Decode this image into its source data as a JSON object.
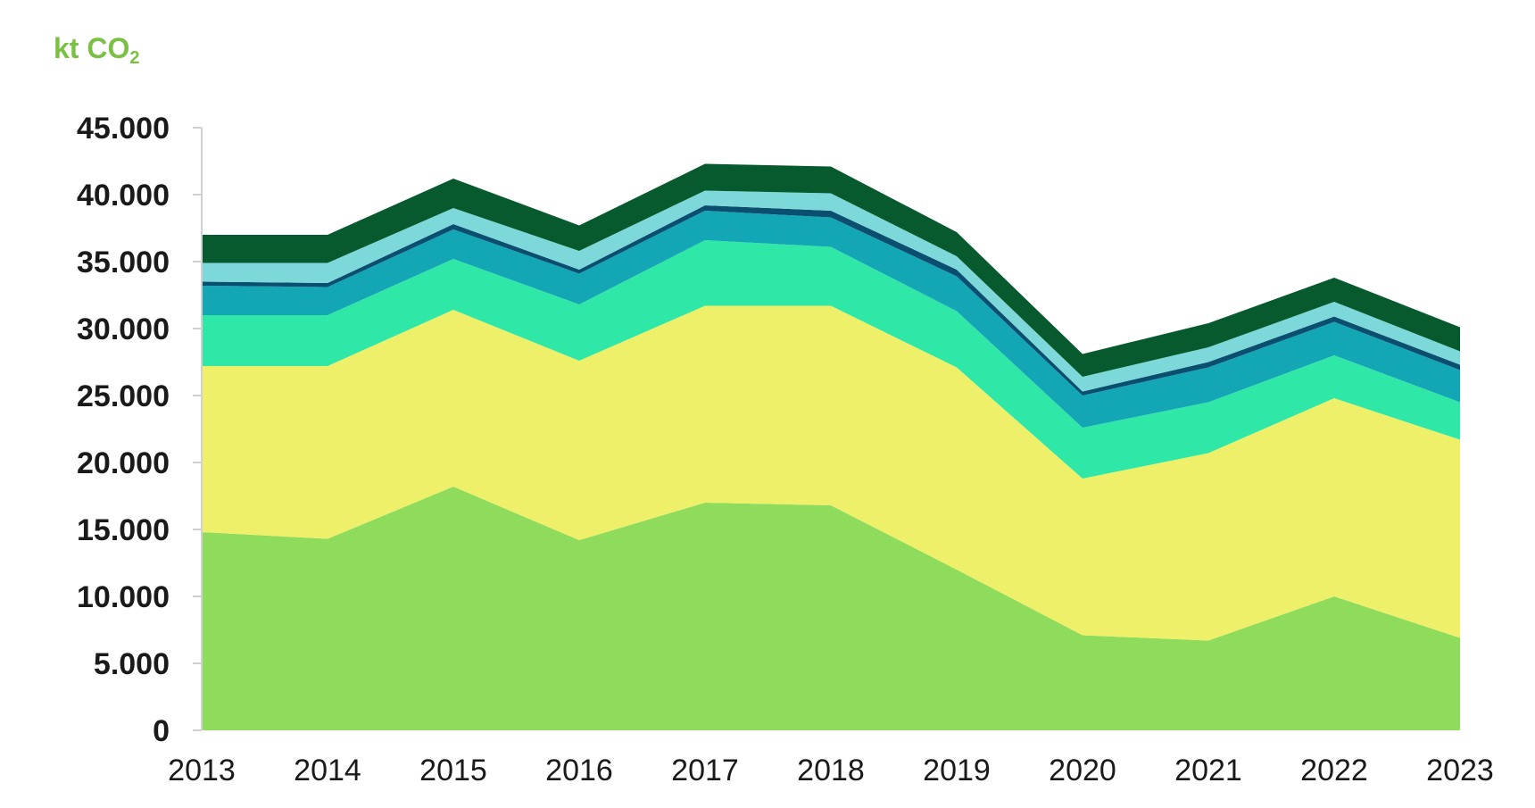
{
  "chart_data": {
    "type": "area",
    "stacked": true,
    "unit_label": {
      "main": "kt CO",
      "subscript": "2"
    },
    "x": [
      "2013",
      "2014",
      "2015",
      "2016",
      "2017",
      "2018",
      "2019",
      "2020",
      "2021",
      "2022",
      "2023"
    ],
    "ylim": [
      0,
      45000
    ],
    "yticks": [
      0,
      5000,
      10000,
      15000,
      20000,
      25000,
      30000,
      35000,
      40000,
      45000
    ],
    "ytick_labels": [
      "0",
      "5.000",
      "10.000",
      "15.000",
      "20.000",
      "25.000",
      "30.000",
      "35.000",
      "40.000",
      "45.000"
    ],
    "grid": false,
    "legend": "none",
    "series": [
      {
        "color": "#8fdc5d",
        "values": [
          14800,
          14300,
          18200,
          14200,
          17000,
          16800,
          12000,
          7100,
          6700,
          10000,
          6900
        ]
      },
      {
        "color": "#eef06a",
        "values": [
          12400,
          12900,
          13200,
          13400,
          14700,
          14900,
          15100,
          11700,
          14000,
          14800,
          14800
        ]
      },
      {
        "color": "#2fe8a8",
        "values": [
          3800,
          3800,
          3800,
          4200,
          4900,
          4400,
          4200,
          3800,
          3800,
          3200,
          2800
        ]
      },
      {
        "color": "#13a6b5",
        "values": [
          2200,
          2100,
          2200,
          2300,
          2200,
          2200,
          2600,
          2400,
          2600,
          2500,
          2400
        ]
      },
      {
        "color": "#0a4f6f",
        "values": [
          300,
          300,
          400,
          300,
          400,
          500,
          500,
          300,
          400,
          400,
          400
        ]
      },
      {
        "color": "#7dd9d9",
        "values": [
          1400,
          1500,
          1200,
          1400,
          1100,
          1300,
          1000,
          1100,
          1100,
          1100,
          1000
        ]
      },
      {
        "color": "#065a2e",
        "values": [
          2100,
          2100,
          2200,
          1900,
          2000,
          2000,
          1800,
          1700,
          1800,
          1800,
          1800
        ]
      }
    ]
  }
}
